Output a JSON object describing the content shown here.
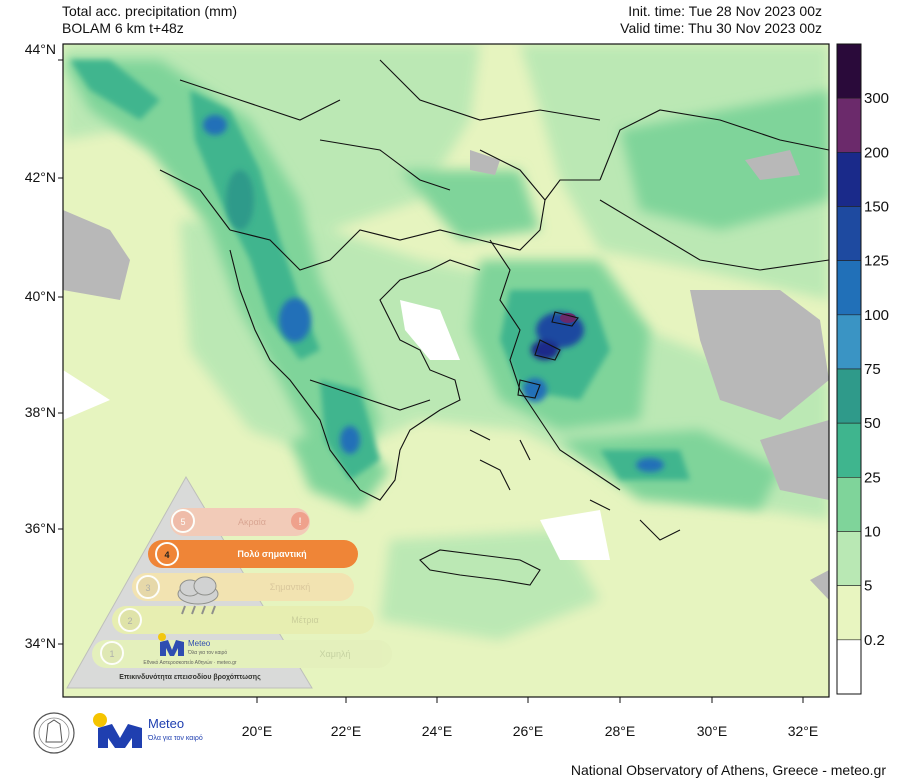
{
  "header": {
    "title": "Total acc. precipitation (mm)",
    "model": "BOLAM 6 km t+48z",
    "init_time": "Init. time: Tue 28 Nov 2023 00z",
    "valid_time": "Valid time: Thu 30 Nov 2023 00z"
  },
  "axes": {
    "lat_labels": [
      "44°N",
      "42°N",
      "40°N",
      "38°N",
      "36°N",
      "34°N"
    ],
    "lon_labels": [
      "20°E",
      "22°E",
      "24°E",
      "26°E",
      "28°E",
      "30°E",
      "32°E"
    ]
  },
  "colorbar": {
    "labels": [
      "300",
      "200",
      "150",
      "125",
      "100",
      "75",
      "50",
      "25",
      "10",
      "5",
      "0.2"
    ],
    "colors": [
      "#2a0a3a",
      "#6b2a6b",
      "#1a2a8a",
      "#1e4aa0",
      "#2170b8",
      "#3a94c4",
      "#2f9a8a",
      "#3fb58e",
      "#7fd49a",
      "#b9e8b4",
      "#e8f5c0",
      "#ffffff"
    ]
  },
  "warning_scale": {
    "levels": [
      {
        "num": "5",
        "label": "Ακραία"
      },
      {
        "num": "4",
        "label": "Πολύ σημαντική"
      },
      {
        "num": "3",
        "label": "Σημαντική"
      },
      {
        "num": "2",
        "label": "Μέτρια"
      },
      {
        "num": "1",
        "label": "Χαμηλή"
      }
    ],
    "active_level": "4",
    "caption": "Επικινδυνότητα επεισοδίου βροχόπτωσης",
    "brand": "Meteo",
    "brand_small": "Όλα για τον καιρό",
    "brand_line": "Εθνικό Αστεροσκοπείο Αθηνών · meteo.gr"
  },
  "logos": {
    "brand": "Meteo",
    "tagline": "Όλα για τον καιρό"
  },
  "footer": "National Observatory of Athens, Greece - meteo.gr"
}
